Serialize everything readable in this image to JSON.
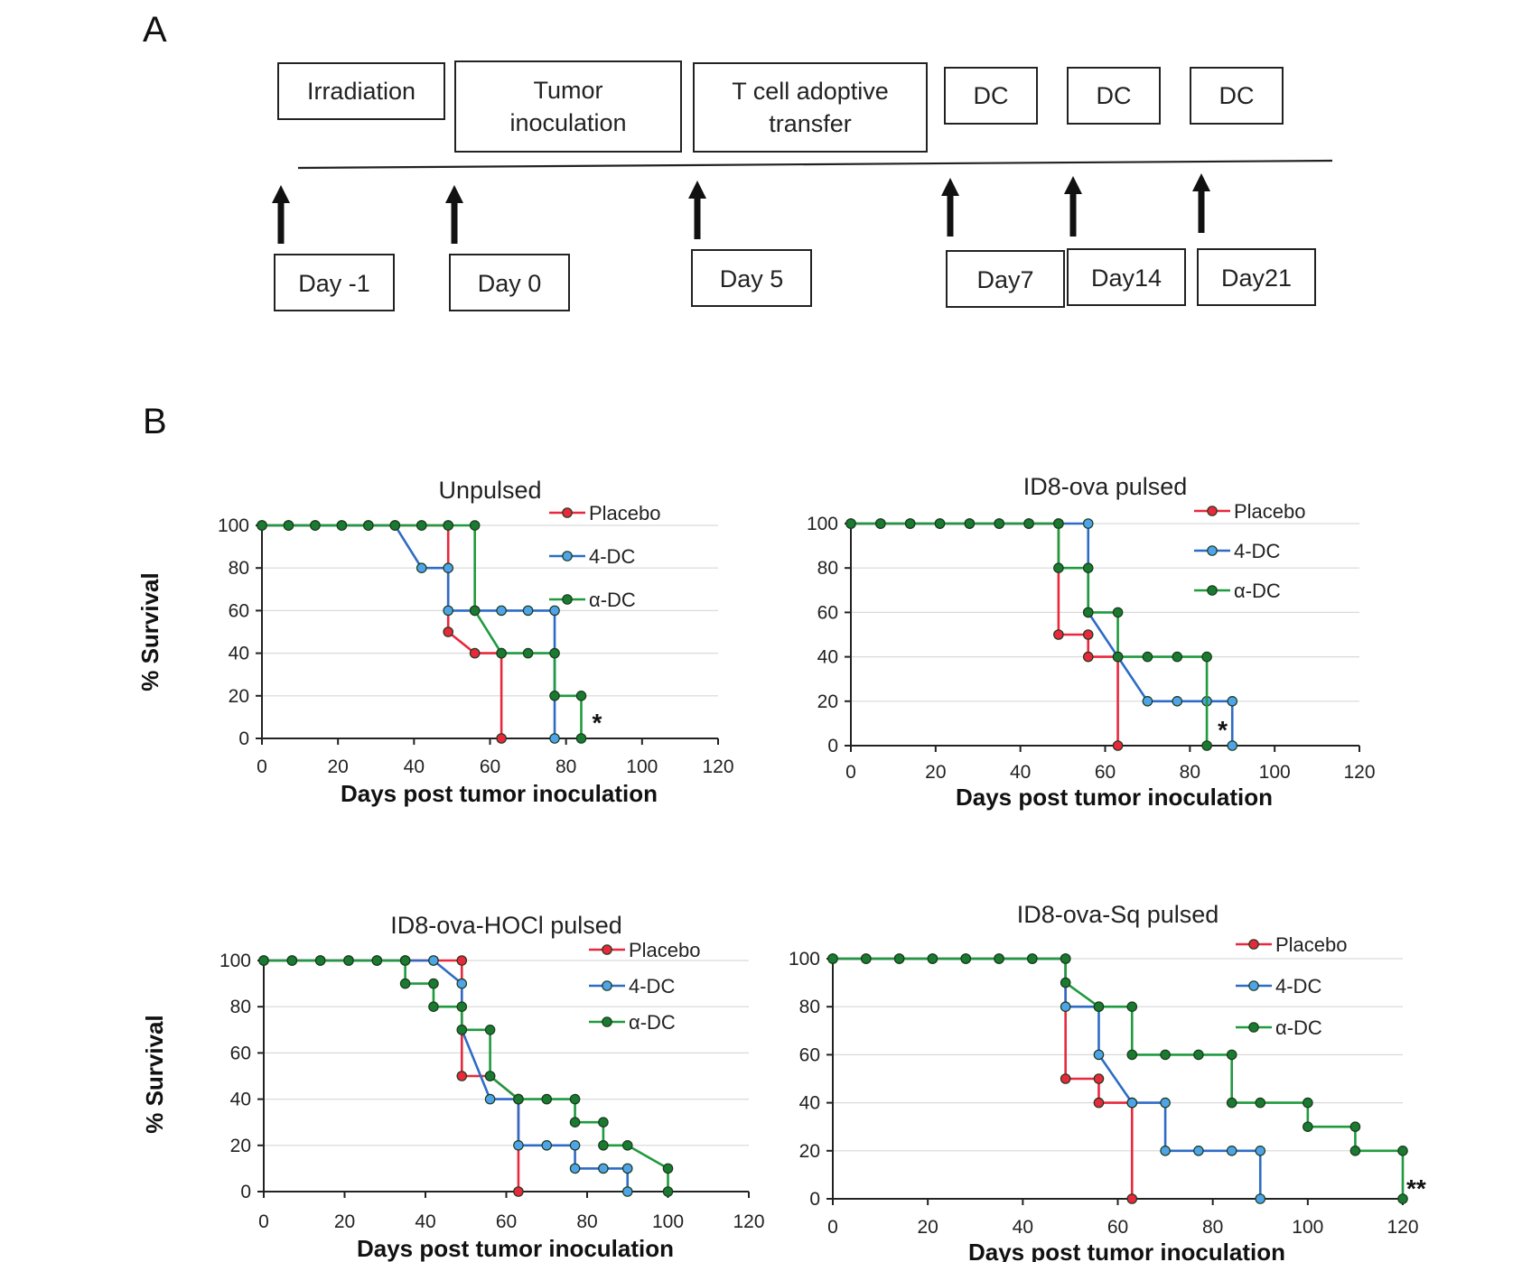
{
  "panel_labels": {
    "a": "A",
    "b": "B"
  },
  "timeline": {
    "events": [
      {
        "label": [
          "Irradiation"
        ],
        "day": "Day -1"
      },
      {
        "label": [
          "Tumor",
          "inoculation"
        ],
        "day": "Day 0"
      },
      {
        "label": [
          "T cell adoptive",
          "transfer"
        ],
        "day": "Day 5"
      },
      {
        "label": [
          "DC"
        ],
        "day": "Day7"
      },
      {
        "label": [
          "DC"
        ],
        "day": "Day14"
      },
      {
        "label": [
          "DC"
        ],
        "day": "Day21"
      }
    ]
  },
  "colors": {
    "placebo": "#e8283c",
    "dc4": "#2e6bc6",
    "adc": "#1f9a3e",
    "dc4_fill": "#4fa3e8",
    "adc_fill": "#1a7a32"
  },
  "chart_data": [
    {
      "type": "line",
      "title": "Unpulsed",
      "xlabel": "Days post tumor inoculation",
      "ylabel": "% Survival",
      "xlim": [
        0,
        120
      ],
      "ylim": [
        0,
        100
      ],
      "xticks": [
        0,
        20,
        40,
        60,
        80,
        100,
        120
      ],
      "yticks": [
        0,
        20,
        40,
        60,
        80,
        100
      ],
      "significance": "*",
      "series": [
        {
          "name": "Placebo",
          "color_key": "placebo",
          "x": [
            0,
            7,
            14,
            21,
            28,
            35,
            42,
            49,
            49,
            56,
            63,
            63
          ],
          "y": [
            100,
            100,
            100,
            100,
            100,
            100,
            100,
            100,
            50,
            40,
            40,
            0
          ]
        },
        {
          "name": "4-DC",
          "color_key": "dc4",
          "x": [
            0,
            7,
            14,
            21,
            28,
            35,
            42,
            49,
            49,
            56,
            63,
            70,
            77,
            77
          ],
          "y": [
            100,
            100,
            100,
            100,
            100,
            100,
            80,
            80,
            60,
            60,
            60,
            60,
            60,
            0
          ]
        },
        {
          "name": "α-DC",
          "color_key": "adc",
          "x": [
            0,
            7,
            14,
            21,
            28,
            35,
            42,
            49,
            56,
            56,
            63,
            70,
            77,
            77,
            84,
            84
          ],
          "y": [
            100,
            100,
            100,
            100,
            100,
            100,
            100,
            100,
            100,
            60,
            40,
            40,
            40,
            20,
            20,
            0
          ]
        }
      ]
    },
    {
      "type": "line",
      "title": "ID8-ova pulsed",
      "xlabel": "Days post tumor inoculation",
      "ylabel": "% Survival",
      "xlim": [
        0,
        120
      ],
      "ylim": [
        0,
        100
      ],
      "xticks": [
        0,
        20,
        40,
        60,
        80,
        100,
        120
      ],
      "yticks": [
        0,
        20,
        40,
        60,
        80,
        100
      ],
      "significance": "*",
      "series": [
        {
          "name": "Placebo",
          "color_key": "placebo",
          "x": [
            0,
            7,
            14,
            21,
            28,
            35,
            42,
            49,
            49,
            56,
            56,
            63,
            63
          ],
          "y": [
            100,
            100,
            100,
            100,
            100,
            100,
            100,
            100,
            50,
            50,
            40,
            40,
            0
          ]
        },
        {
          "name": "4-DC",
          "color_key": "dc4",
          "x": [
            0,
            7,
            14,
            21,
            28,
            35,
            42,
            49,
            56,
            56,
            63,
            70,
            77,
            84,
            90,
            90
          ],
          "y": [
            100,
            100,
            100,
            100,
            100,
            100,
            100,
            100,
            100,
            60,
            40,
            20,
            20,
            20,
            20,
            0
          ]
        },
        {
          "name": "α-DC",
          "color_key": "adc",
          "x": [
            0,
            7,
            14,
            21,
            28,
            35,
            42,
            49,
            49,
            56,
            56,
            63,
            63,
            70,
            77,
            84,
            84
          ],
          "y": [
            100,
            100,
            100,
            100,
            100,
            100,
            100,
            100,
            80,
            80,
            60,
            60,
            40,
            40,
            40,
            40,
            0
          ]
        }
      ]
    },
    {
      "type": "line",
      "title": "ID8-ova-HOCl pulsed",
      "xlabel": "Days post tumor inoculation",
      "ylabel": "% Survival",
      "xlim": [
        0,
        120
      ],
      "ylim": [
        0,
        100
      ],
      "xticks": [
        0,
        20,
        40,
        60,
        80,
        100,
        120
      ],
      "yticks": [
        0,
        20,
        40,
        60,
        80,
        100
      ],
      "significance": "",
      "series": [
        {
          "name": "Placebo",
          "color_key": "placebo",
          "x": [
            0,
            7,
            14,
            21,
            28,
            35,
            42,
            49,
            49,
            56,
            63,
            63
          ],
          "y": [
            100,
            100,
            100,
            100,
            100,
            100,
            100,
            100,
            50,
            50,
            40,
            0
          ]
        },
        {
          "name": "4-DC",
          "color_key": "dc4",
          "x": [
            0,
            7,
            14,
            21,
            28,
            35,
            42,
            49,
            49,
            56,
            63,
            63,
            70,
            77,
            77,
            84,
            90,
            90
          ],
          "y": [
            100,
            100,
            100,
            100,
            100,
            100,
            100,
            90,
            70,
            40,
            40,
            20,
            20,
            20,
            10,
            10,
            10,
            0
          ]
        },
        {
          "name": "α-DC",
          "color_key": "adc",
          "x": [
            0,
            7,
            14,
            21,
            28,
            35,
            35,
            42,
            42,
            49,
            49,
            56,
            56,
            63,
            70,
            77,
            77,
            84,
            84,
            90,
            100,
            100
          ],
          "y": [
            100,
            100,
            100,
            100,
            100,
            100,
            90,
            90,
            80,
            80,
            70,
            70,
            50,
            40,
            40,
            40,
            30,
            30,
            20,
            20,
            10,
            0
          ]
        }
      ]
    },
    {
      "type": "line",
      "title": "ID8-ova-Sq pulsed",
      "xlabel": "Days post tumor inoculation",
      "ylabel": "% Survival",
      "xlim": [
        0,
        120
      ],
      "ylim": [
        0,
        100
      ],
      "xticks": [
        0,
        20,
        40,
        60,
        80,
        100,
        120
      ],
      "yticks": [
        0,
        20,
        40,
        60,
        80,
        100
      ],
      "significance": "**",
      "series": [
        {
          "name": "Placebo",
          "color_key": "placebo",
          "x": [
            0,
            7,
            14,
            21,
            28,
            35,
            42,
            49,
            49,
            56,
            56,
            63,
            63
          ],
          "y": [
            100,
            100,
            100,
            100,
            100,
            100,
            100,
            100,
            50,
            50,
            40,
            40,
            0
          ]
        },
        {
          "name": "4-DC",
          "color_key": "dc4",
          "x": [
            0,
            7,
            14,
            21,
            28,
            35,
            42,
            49,
            49,
            56,
            56,
            63,
            70,
            70,
            77,
            84,
            90,
            90
          ],
          "y": [
            100,
            100,
            100,
            100,
            100,
            100,
            100,
            100,
            80,
            80,
            60,
            40,
            40,
            20,
            20,
            20,
            20,
            0
          ]
        },
        {
          "name": "α-DC",
          "color_key": "adc",
          "x": [
            0,
            7,
            14,
            21,
            28,
            35,
            42,
            49,
            49,
            56,
            63,
            63,
            70,
            77,
            84,
            84,
            90,
            100,
            100,
            110,
            110,
            120,
            120
          ],
          "y": [
            100,
            100,
            100,
            100,
            100,
            100,
            100,
            100,
            90,
            80,
            80,
            60,
            60,
            60,
            60,
            40,
            40,
            40,
            30,
            30,
            20,
            20,
            0
          ]
        }
      ]
    }
  ]
}
